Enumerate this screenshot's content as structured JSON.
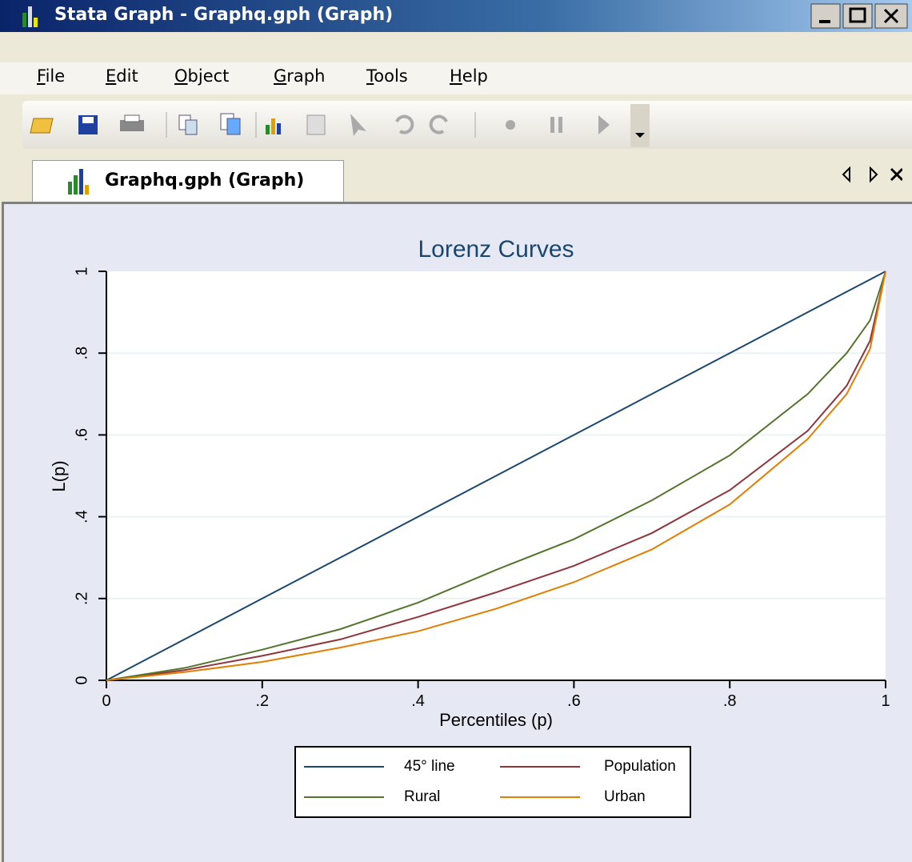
{
  "window": {
    "title": "Stata Graph - Graphq.gph (Graph)",
    "menu": [
      "File",
      "Edit",
      "Object",
      "Graph",
      "Tools",
      "Help"
    ],
    "tab": "Graphq.gph (Graph)"
  },
  "chart_data": {
    "type": "line",
    "title": "Lorenz Curves",
    "x_label": "Percentiles (p)",
    "y_label": "L(p)",
    "x": [
      0,
      0.1,
      0.2,
      0.3,
      0.4,
      0.5,
      0.6,
      0.7,
      0.8,
      0.9,
      0.95,
      0.98,
      1
    ],
    "series": [
      {
        "name": "45° line",
        "color": "#1a476f",
        "values": [
          0,
          0.1,
          0.2,
          0.3,
          0.4,
          0.5,
          0.6,
          0.7,
          0.8,
          0.9,
          0.95,
          0.98,
          1
        ]
      },
      {
        "name": "Population",
        "color": "#90353b",
        "values": [
          0,
          0.025,
          0.06,
          0.1,
          0.155,
          0.215,
          0.28,
          0.36,
          0.465,
          0.61,
          0.72,
          0.83,
          1
        ]
      },
      {
        "name": "Rural",
        "color": "#55752f",
        "values": [
          0,
          0.03,
          0.075,
          0.125,
          0.19,
          0.27,
          0.345,
          0.44,
          0.55,
          0.7,
          0.8,
          0.88,
          1
        ]
      },
      {
        "name": "Urban",
        "color": "#e37e00",
        "values": [
          0,
          0.02,
          0.045,
          0.08,
          0.12,
          0.175,
          0.24,
          0.32,
          0.43,
          0.59,
          0.7,
          0.81,
          1
        ]
      }
    ],
    "xlim": [
      0,
      1
    ],
    "ylim": [
      0,
      1
    ],
    "xticks": [
      0,
      {
        "value": 0.2,
        "label": ".2"
      },
      {
        "value": 0.4,
        "label": ".4"
      },
      {
        "value": 0.6,
        "label": ".6"
      },
      {
        "value": 0.8,
        "label": ".8"
      },
      1
    ],
    "yticks": [
      0,
      {
        "value": 0.2,
        "label": ".2"
      },
      {
        "value": 0.4,
        "label": ".4"
      },
      {
        "value": 0.6,
        "label": ".6"
      },
      {
        "value": 0.8,
        "label": ".8"
      },
      1
    ],
    "grid": true
  }
}
